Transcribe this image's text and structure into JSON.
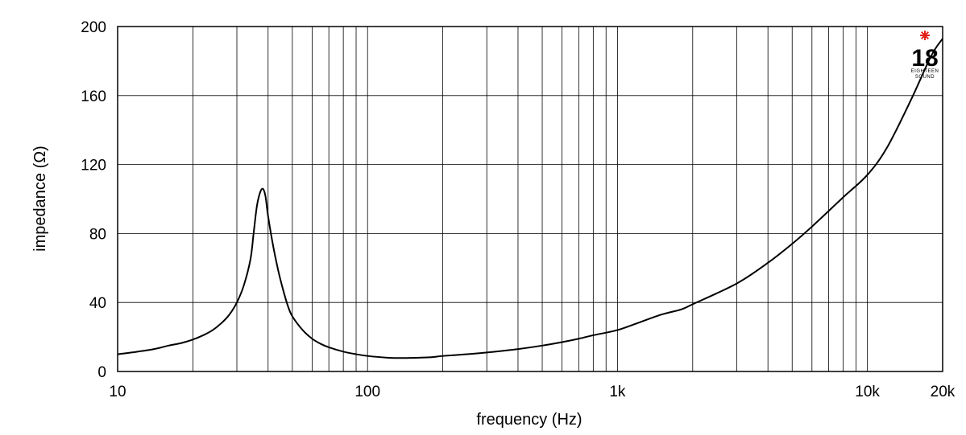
{
  "chart_data": {
    "type": "line",
    "xlabel": "frequency (Hz)",
    "ylabel": "impedance (Ω)",
    "x_scale": "log",
    "xlim": [
      10,
      20000
    ],
    "ylim": [
      0,
      200
    ],
    "grid": true,
    "x_ticks": [
      {
        "value": 10,
        "label": "10"
      },
      {
        "value": 100,
        "label": "100"
      },
      {
        "value": 1000,
        "label": "1k"
      },
      {
        "value": 10000,
        "label": "10k"
      },
      {
        "value": 20000,
        "label": "20k"
      }
    ],
    "y_ticks": [
      {
        "value": 0,
        "label": "0"
      },
      {
        "value": 40,
        "label": "40"
      },
      {
        "value": 80,
        "label": "80"
      },
      {
        "value": 120,
        "label": "120"
      },
      {
        "value": 160,
        "label": "160"
      },
      {
        "value": 200,
        "label": "200"
      }
    ],
    "series": [
      {
        "color": "#000000",
        "points": [
          [
            10,
            10
          ],
          [
            12,
            11.5
          ],
          [
            14,
            13
          ],
          [
            16,
            15
          ],
          [
            18,
            16.5
          ],
          [
            20,
            18.5
          ],
          [
            22,
            21
          ],
          [
            24,
            24
          ],
          [
            26,
            28
          ],
          [
            28,
            33
          ],
          [
            30,
            40
          ],
          [
            32,
            50
          ],
          [
            34,
            65
          ],
          [
            35,
            80
          ],
          [
            36,
            95
          ],
          [
            37,
            103
          ],
          [
            38,
            106
          ],
          [
            39,
            102
          ],
          [
            40,
            90
          ],
          [
            42,
            72
          ],
          [
            44,
            58
          ],
          [
            46,
            47
          ],
          [
            48,
            38
          ],
          [
            50,
            32
          ],
          [
            55,
            24
          ],
          [
            60,
            19
          ],
          [
            65,
            16
          ],
          [
            70,
            14
          ],
          [
            80,
            11.5
          ],
          [
            90,
            10
          ],
          [
            100,
            9
          ],
          [
            120,
            8
          ],
          [
            140,
            7.8
          ],
          [
            160,
            8
          ],
          [
            180,
            8.3
          ],
          [
            200,
            9
          ],
          [
            250,
            10
          ],
          [
            300,
            11
          ],
          [
            400,
            13
          ],
          [
            500,
            15
          ],
          [
            600,
            17
          ],
          [
            700,
            19
          ],
          [
            800,
            21
          ],
          [
            1000,
            24
          ],
          [
            1200,
            28
          ],
          [
            1500,
            33
          ],
          [
            1800,
            36
          ],
          [
            2000,
            39
          ],
          [
            3000,
            51
          ],
          [
            4000,
            63
          ],
          [
            5000,
            74
          ],
          [
            6000,
            84
          ],
          [
            8000,
            101
          ],
          [
            10000,
            114
          ],
          [
            12000,
            130
          ],
          [
            15000,
            158
          ],
          [
            18000,
            183
          ],
          [
            20000,
            193
          ]
        ]
      }
    ]
  },
  "logo": {
    "text": "18",
    "subtext_top": "EIGHTEEN",
    "subtext_bottom": "SOUND",
    "star_color": "#e32119"
  }
}
